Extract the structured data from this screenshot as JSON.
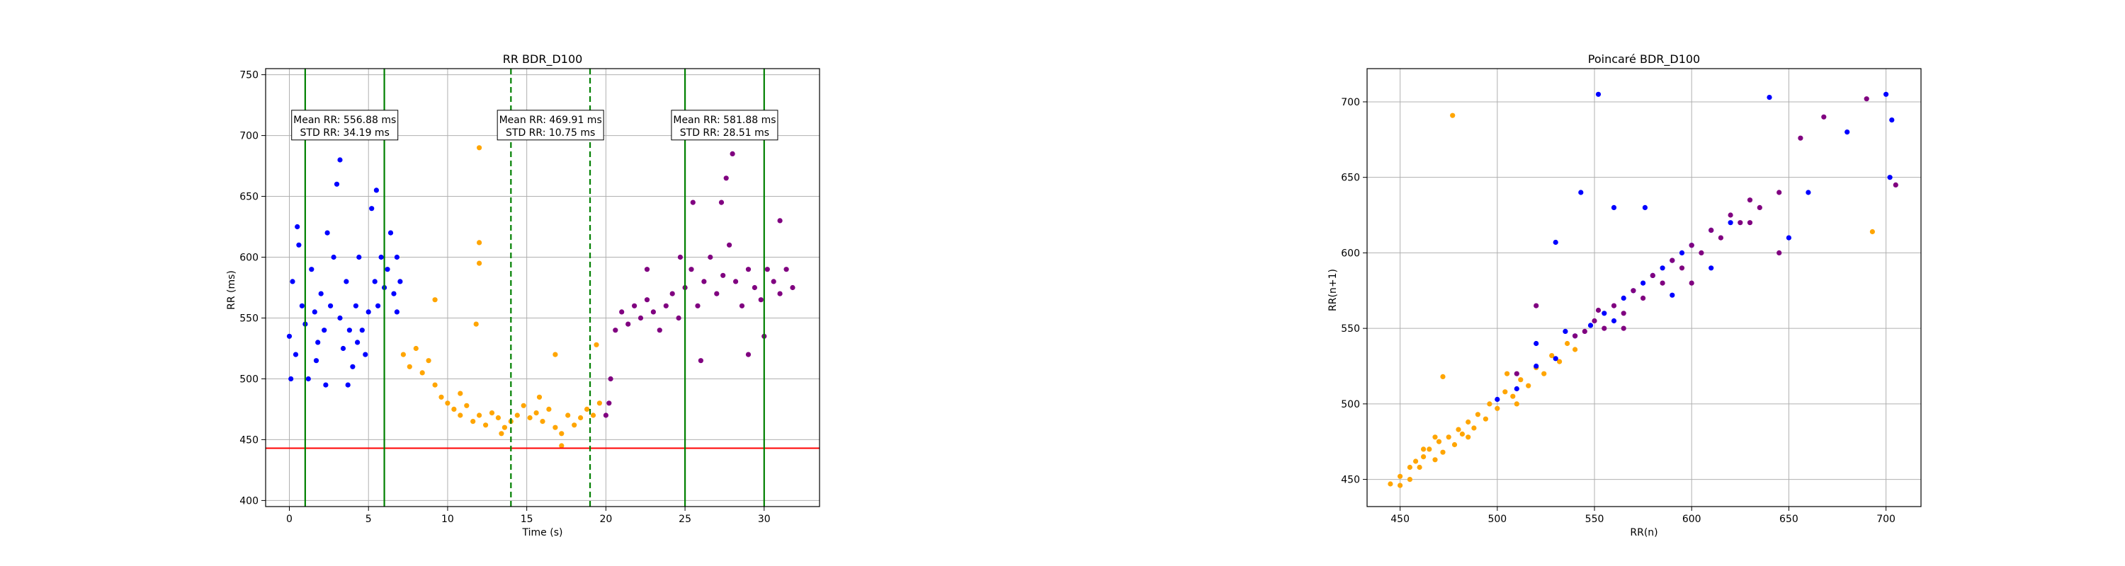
{
  "chart_data": [
    {
      "type": "scatter",
      "title": "RR BDR_D100",
      "xlabel": "Time (s)",
      "ylabel": "RR (ms)",
      "xlim": [
        -1.5,
        33.5
      ],
      "ylim": [
        395,
        755
      ],
      "xticks": [
        0,
        5,
        10,
        15,
        20,
        25,
        30
      ],
      "yticks": [
        400,
        450,
        500,
        550,
        600,
        650,
        700,
        750
      ],
      "grid": true,
      "hlines": [
        {
          "y": 443,
          "color": "#ff0000"
        }
      ],
      "vlines": [
        {
          "x": 1,
          "color": "#008000",
          "style": "solid"
        },
        {
          "x": 6,
          "color": "#008000",
          "style": "solid"
        },
        {
          "x": 14,
          "color": "#008000",
          "style": "dashed"
        },
        {
          "x": 19,
          "color": "#008000",
          "style": "dashed"
        },
        {
          "x": 25,
          "color": "#008000",
          "style": "solid"
        },
        {
          "x": 30,
          "color": "#008000",
          "style": "solid"
        }
      ],
      "annotations": [
        {
          "x": 3.5,
          "y": 708,
          "lines": [
            "Mean RR: 556.88 ms",
            "STD RR: 34.19 ms"
          ]
        },
        {
          "x": 16.5,
          "y": 708,
          "lines": [
            "Mean RR: 469.91 ms",
            "STD RR: 10.75 ms"
          ]
        },
        {
          "x": 27.5,
          "y": 708,
          "lines": [
            "Mean RR: 581.88 ms",
            "STD RR: 28.51 ms"
          ]
        }
      ],
      "series": [
        {
          "color": "#0000ff",
          "points": [
            [
              0.0,
              535
            ],
            [
              0.2,
              580
            ],
            [
              0.4,
              520
            ],
            [
              0.6,
              610
            ],
            [
              0.8,
              560
            ],
            [
              1.0,
              545
            ],
            [
              1.2,
              500
            ],
            [
              1.4,
              590
            ],
            [
              1.6,
              555
            ],
            [
              1.8,
              530
            ],
            [
              2.0,
              570
            ],
            [
              2.2,
              540
            ],
            [
              2.4,
              620
            ],
            [
              2.6,
              560
            ],
            [
              2.8,
              600
            ],
            [
              3.0,
              660
            ],
            [
              3.2,
              550
            ],
            [
              3.4,
              525
            ],
            [
              3.6,
              580
            ],
            [
              3.8,
              540
            ],
            [
              4.0,
              510
            ],
            [
              4.2,
              560
            ],
            [
              4.4,
              600
            ],
            [
              4.6,
              540
            ],
            [
              4.8,
              520
            ],
            [
              5.0,
              555
            ],
            [
              5.2,
              640
            ],
            [
              5.4,
              580
            ],
            [
              5.6,
              560
            ],
            [
              5.8,
              600
            ],
            [
              6.0,
              575
            ],
            [
              6.2,
              590
            ],
            [
              6.4,
              620
            ],
            [
              6.6,
              570
            ],
            [
              6.8,
              600
            ],
            [
              7.0,
              580
            ],
            [
              0.5,
              625
            ],
            [
              3.2,
              680
            ],
            [
              4.3,
              530
            ],
            [
              2.3,
              495
            ],
            [
              6.8,
              555
            ],
            [
              1.7,
              515
            ],
            [
              3.7,
              495
            ],
            [
              5.5,
              655
            ],
            [
              0.1,
              500
            ]
          ]
        },
        {
          "color": "#ffa500",
          "points": [
            [
              7.2,
              520
            ],
            [
              7.6,
              510
            ],
            [
              8.0,
              525
            ],
            [
              8.4,
              505
            ],
            [
              8.8,
              515
            ],
            [
              9.2,
              495
            ],
            [
              9.6,
              485
            ],
            [
              10.0,
              480
            ],
            [
              10.4,
              475
            ],
            [
              10.8,
              470
            ],
            [
              11.2,
              478
            ],
            [
              11.6,
              465
            ],
            [
              12.0,
              470
            ],
            [
              12.4,
              462
            ],
            [
              12.8,
              472
            ],
            [
              13.2,
              468
            ],
            [
              13.6,
              460
            ],
            [
              14.0,
              465
            ],
            [
              14.4,
              470
            ],
            [
              14.8,
              478
            ],
            [
              15.2,
              468
            ],
            [
              15.6,
              472
            ],
            [
              16.0,
              465
            ],
            [
              16.4,
              475
            ],
            [
              16.8,
              460
            ],
            [
              17.2,
              455
            ],
            [
              17.6,
              470
            ],
            [
              18.0,
              462
            ],
            [
              18.4,
              468
            ],
            [
              18.8,
              475
            ],
            [
              19.2,
              470
            ],
            [
              19.6,
              480
            ],
            [
              12.0,
              690
            ],
            [
              12.0,
              612
            ],
            [
              12.0,
              595
            ],
            [
              11.8,
              545
            ],
            [
              9.2,
              565
            ],
            [
              17.2,
              445
            ],
            [
              16.8,
              520
            ],
            [
              19.4,
              528
            ],
            [
              10.8,
              488
            ],
            [
              13.4,
              455
            ],
            [
              15.8,
              485
            ]
          ]
        },
        {
          "color": "#800080",
          "points": [
            [
              20.0,
              470
            ],
            [
              20.3,
              500
            ],
            [
              20.6,
              540
            ],
            [
              21.0,
              555
            ],
            [
              21.4,
              545
            ],
            [
              21.8,
              560
            ],
            [
              22.2,
              550
            ],
            [
              22.6,
              565
            ],
            [
              23.0,
              555
            ],
            [
              23.4,
              540
            ],
            [
              23.8,
              560
            ],
            [
              24.2,
              570
            ],
            [
              24.6,
              550
            ],
            [
              25.0,
              575
            ],
            [
              25.4,
              590
            ],
            [
              25.8,
              560
            ],
            [
              26.2,
              580
            ],
            [
              26.6,
              600
            ],
            [
              27.0,
              570
            ],
            [
              27.4,
              585
            ],
            [
              27.8,
              610
            ],
            [
              28.2,
              580
            ],
            [
              28.6,
              560
            ],
            [
              29.0,
              590
            ],
            [
              29.4,
              575
            ],
            [
              29.8,
              565
            ],
            [
              30.2,
              590
            ],
            [
              30.6,
              580
            ],
            [
              31.0,
              570
            ],
            [
              31.4,
              590
            ],
            [
              31.8,
              575
            ],
            [
              28.0,
              685
            ],
            [
              27.6,
              665
            ],
            [
              27.3,
              645
            ],
            [
              29.0,
              520
            ],
            [
              30.0,
              535
            ],
            [
              26.0,
              515
            ],
            [
              22.6,
              590
            ],
            [
              24.7,
              600
            ],
            [
              20.2,
              480
            ],
            [
              31.0,
              630
            ],
            [
              25.5,
              645
            ]
          ]
        }
      ]
    },
    {
      "type": "scatter",
      "title": "Poincaré BDR_D100",
      "xlabel": "RR(n)",
      "ylabel": "RR(n+1)",
      "xlim": [
        433,
        718
      ],
      "ylim": [
        432,
        722
      ],
      "xticks": [
        450,
        500,
        550,
        600,
        650,
        700
      ],
      "yticks": [
        450,
        500,
        550,
        600,
        650,
        700
      ],
      "grid": true,
      "series": [
        {
          "color": "#ffa500",
          "points": [
            [
              445,
              447
            ],
            [
              450,
              452
            ],
            [
              455,
              450
            ],
            [
              458,
              462
            ],
            [
              460,
              458
            ],
            [
              462,
              465
            ],
            [
              465,
              470
            ],
            [
              468,
              463
            ],
            [
              470,
              475
            ],
            [
              472,
              468
            ],
            [
              475,
              478
            ],
            [
              478,
              473
            ],
            [
              480,
              483
            ],
            [
              482,
              480
            ],
            [
              485,
              488
            ],
            [
              488,
              484
            ],
            [
              490,
              493
            ],
            [
              494,
              490
            ],
            [
              496,
              500
            ],
            [
              500,
              497
            ],
            [
              504,
              508
            ],
            [
              508,
              505
            ],
            [
              512,
              516
            ],
            [
              516,
              512
            ],
            [
              520,
              524
            ],
            [
              524,
              520
            ],
            [
              528,
              532
            ],
            [
              532,
              528
            ],
            [
              536,
              540
            ],
            [
              540,
              536
            ],
            [
              477,
              691
            ],
            [
              693,
              614
            ],
            [
              472,
              518
            ],
            [
              462,
              470
            ],
            [
              455,
              458
            ],
            [
              505,
              520
            ],
            [
              510,
              500
            ],
            [
              468,
              478
            ],
            [
              450,
              446
            ],
            [
              485,
              478
            ]
          ]
        },
        {
          "color": "#0000ff",
          "points": [
            [
              500,
              503
            ],
            [
              510,
              510
            ],
            [
              520,
              525
            ],
            [
              530,
              530
            ],
            [
              540,
              545
            ],
            [
              548,
              552
            ],
            [
              555,
              560
            ],
            [
              560,
              555
            ],
            [
              565,
              570
            ],
            [
              570,
              575
            ],
            [
              575,
              580
            ],
            [
              580,
              585
            ],
            [
              585,
              590
            ],
            [
              590,
              595
            ],
            [
              595,
              600
            ],
            [
              600,
              605
            ],
            [
              610,
              615
            ],
            [
              620,
              620
            ],
            [
              640,
              703
            ],
            [
              552,
              705
            ],
            [
              700,
              705
            ],
            [
              702,
              650
            ],
            [
              560,
              630
            ],
            [
              530,
              607
            ],
            [
              650,
              610
            ],
            [
              660,
              640
            ],
            [
              543,
              640
            ],
            [
              576,
              630
            ],
            [
              520,
              540
            ],
            [
              610,
              590
            ],
            [
              535,
              548
            ],
            [
              590,
              572
            ],
            [
              680,
              680
            ],
            [
              703,
              688
            ]
          ]
        },
        {
          "color": "#800080",
          "points": [
            [
              540,
              545
            ],
            [
              545,
              548
            ],
            [
              550,
              555
            ],
            [
              555,
              550
            ],
            [
              560,
              565
            ],
            [
              565,
              560
            ],
            [
              570,
              575
            ],
            [
              575,
              570
            ],
            [
              580,
              585
            ],
            [
              585,
              580
            ],
            [
              590,
              595
            ],
            [
              595,
              590
            ],
            [
              600,
              605
            ],
            [
              605,
              600
            ],
            [
              610,
              615
            ],
            [
              615,
              610
            ],
            [
              620,
              625
            ],
            [
              625,
              620
            ],
            [
              630,
              635
            ],
            [
              635,
              630
            ],
            [
              645,
              640
            ],
            [
              656,
              676
            ],
            [
              690,
              702
            ],
            [
              705,
              645
            ],
            [
              668,
              690
            ],
            [
              520,
              565
            ],
            [
              510,
              520
            ],
            [
              600,
              580
            ],
            [
              630,
              620
            ],
            [
              645,
              600
            ],
            [
              565,
              550
            ],
            [
              552,
              562
            ]
          ]
        }
      ]
    }
  ]
}
